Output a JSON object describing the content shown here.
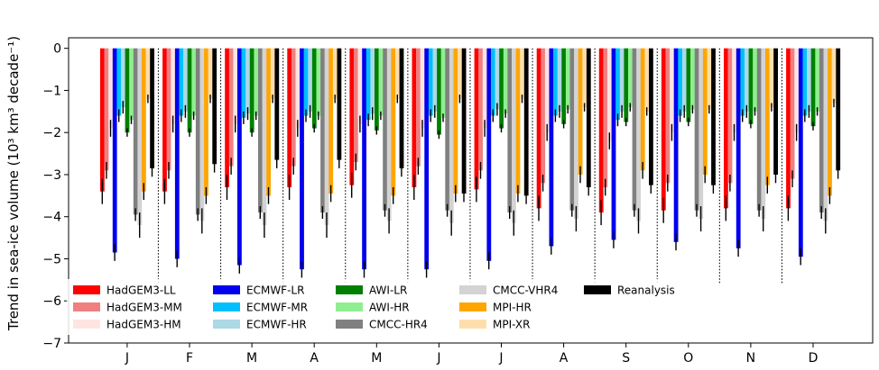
{
  "chart_data": {
    "type": "bar",
    "ylabel": "Trend in sea-ice volume (10³ km³ decade⁻¹)",
    "xlabel": "",
    "ylim": [
      -7,
      0.25
    ],
    "yticks": [
      0,
      -1,
      -2,
      -3,
      -4,
      -5,
      -6,
      -7
    ],
    "ytick_labels": [
      "0",
      "−1",
      "−2",
      "−3",
      "−4",
      "−5",
      "−6",
      "−7"
    ],
    "categories": [
      "J",
      "F",
      "M",
      "A",
      "M",
      "J",
      "J",
      "A",
      "S",
      "O",
      "N",
      "D"
    ],
    "legend_position": "lower-left",
    "series": [
      {
        "name": "HadGEM3-LL",
        "color": "#ff0000",
        "values": [
          -3.4,
          -3.4,
          -3.3,
          -3.3,
          -3.25,
          -3.3,
          -3.35,
          -3.8,
          -3.9,
          -3.85,
          -3.8,
          -3.8
        ],
        "err": [
          0.3,
          0.3,
          0.3,
          0.3,
          0.3,
          0.3,
          0.3,
          0.3,
          0.3,
          0.3,
          0.3,
          0.3
        ]
      },
      {
        "name": "HadGEM3-MM",
        "color": "#f08080",
        "values": [
          -2.9,
          -2.9,
          -2.8,
          -2.8,
          -2.7,
          -2.8,
          -2.9,
          -3.2,
          -3.3,
          -3.2,
          -3.2,
          -3.1
        ],
        "err": [
          0.2,
          0.2,
          0.2,
          0.2,
          0.2,
          0.2,
          0.2,
          0.2,
          0.2,
          0.2,
          0.2,
          0.2
        ]
      },
      {
        "name": "HadGEM3-HM",
        "color": "#ffe4e1",
        "values": [
          -1.9,
          -1.8,
          -1.8,
          -1.9,
          -1.8,
          -1.9,
          -1.9,
          -2.0,
          -2.2,
          -2.0,
          -2.0,
          -2.0
        ],
        "err": [
          0.2,
          0.2,
          0.2,
          0.2,
          0.2,
          0.2,
          0.2,
          0.2,
          0.2,
          0.2,
          0.2,
          0.2
        ]
      },
      {
        "name": "ECMWF-LR",
        "color": "#0000ee",
        "values": [
          -4.85,
          -5.0,
          -5.15,
          -5.25,
          -5.25,
          -5.25,
          -5.05,
          -4.7,
          -4.55,
          -4.6,
          -4.75,
          -4.95
        ],
        "err": [
          0.2,
          0.2,
          0.2,
          0.2,
          0.2,
          0.2,
          0.2,
          0.2,
          0.2,
          0.2,
          0.2,
          0.2
        ]
      },
      {
        "name": "ECMWF-MR",
        "color": "#00bfff",
        "values": [
          -1.6,
          -1.6,
          -1.65,
          -1.6,
          -1.7,
          -1.6,
          -1.6,
          -1.6,
          -1.7,
          -1.6,
          -1.6,
          -1.6
        ],
        "err": [
          0.15,
          0.15,
          0.15,
          0.15,
          0.15,
          0.15,
          0.15,
          0.15,
          0.15,
          0.15,
          0.15,
          0.15
        ]
      },
      {
        "name": "ECMWF-HR",
        "color": "#add8e6",
        "values": [
          -1.4,
          -1.5,
          -1.55,
          -1.5,
          -1.55,
          -1.5,
          -1.45,
          -1.5,
          -1.5,
          -1.5,
          -1.5,
          -1.5
        ],
        "err": [
          0.15,
          0.15,
          0.15,
          0.15,
          0.15,
          0.15,
          0.15,
          0.15,
          0.15,
          0.15,
          0.15,
          0.15
        ]
      },
      {
        "name": "AWI-LR",
        "color": "#008000",
        "values": [
          -2.0,
          -2.0,
          -2.0,
          -1.9,
          -1.95,
          -2.05,
          -1.9,
          -1.8,
          -1.75,
          -1.75,
          -1.8,
          -1.85
        ],
        "err": [
          0.1,
          0.1,
          0.1,
          0.1,
          0.1,
          0.1,
          0.1,
          0.1,
          0.1,
          0.1,
          0.1,
          0.1
        ]
      },
      {
        "name": "AWI-HR",
        "color": "#90ee90",
        "values": [
          -1.7,
          -1.6,
          -1.6,
          -1.6,
          -1.6,
          -1.65,
          -1.55,
          -1.45,
          -1.4,
          -1.45,
          -1.5,
          -1.5
        ],
        "err": [
          0.1,
          0.1,
          0.1,
          0.1,
          0.1,
          0.1,
          0.1,
          0.1,
          0.1,
          0.1,
          0.1,
          0.1
        ]
      },
      {
        "name": "CMCC-HR4",
        "color": "#808080",
        "values": [
          -3.95,
          -3.95,
          -3.9,
          -3.9,
          -3.85,
          -3.85,
          -3.9,
          -3.85,
          -3.85,
          -3.85,
          -3.85,
          -3.9
        ],
        "err": [
          0.15,
          0.15,
          0.15,
          0.15,
          0.15,
          0.15,
          0.15,
          0.15,
          0.15,
          0.15,
          0.15,
          0.15
        ]
      },
      {
        "name": "CMCC-VHR4",
        "color": "#d3d3d3",
        "values": [
          -4.2,
          -4.1,
          -4.2,
          -4.2,
          -4.1,
          -4.15,
          -4.15,
          -4.05,
          -4.1,
          -4.05,
          -4.05,
          -4.1
        ],
        "err": [
          0.3,
          0.3,
          0.3,
          0.3,
          0.3,
          0.3,
          0.3,
          0.3,
          0.3,
          0.3,
          0.3,
          0.3
        ]
      },
      {
        "name": "MPI-HR",
        "color": "#ffa500",
        "values": [
          -3.4,
          -3.5,
          -3.5,
          -3.45,
          -3.5,
          -3.45,
          -3.45,
          -3.0,
          -2.9,
          -3.0,
          -3.25,
          -3.5
        ],
        "err": [
          0.2,
          0.2,
          0.2,
          0.2,
          0.2,
          0.2,
          0.2,
          0.2,
          0.2,
          0.2,
          0.2,
          0.2
        ]
      },
      {
        "name": "MPI-XR",
        "color": "#ffdead",
        "values": [
          -1.2,
          -1.2,
          -1.2,
          -1.2,
          -1.2,
          -1.2,
          -1.2,
          -1.4,
          -1.5,
          -1.45,
          -1.4,
          -1.3
        ],
        "err": [
          0.1,
          0.1,
          0.1,
          0.1,
          0.1,
          0.1,
          0.1,
          0.1,
          0.1,
          0.1,
          0.1,
          0.1
        ]
      },
      {
        "name": "Reanalysis",
        "color": "#000000",
        "values": [
          -2.85,
          -2.75,
          -2.65,
          -2.65,
          -2.85,
          -3.45,
          -3.5,
          -3.3,
          -3.25,
          -3.25,
          -3.0,
          -2.9
        ],
        "err": [
          0.2,
          0.2,
          0.2,
          0.2,
          0.2,
          0.2,
          0.2,
          0.2,
          0.2,
          0.2,
          0.2,
          0.2
        ]
      }
    ]
  }
}
